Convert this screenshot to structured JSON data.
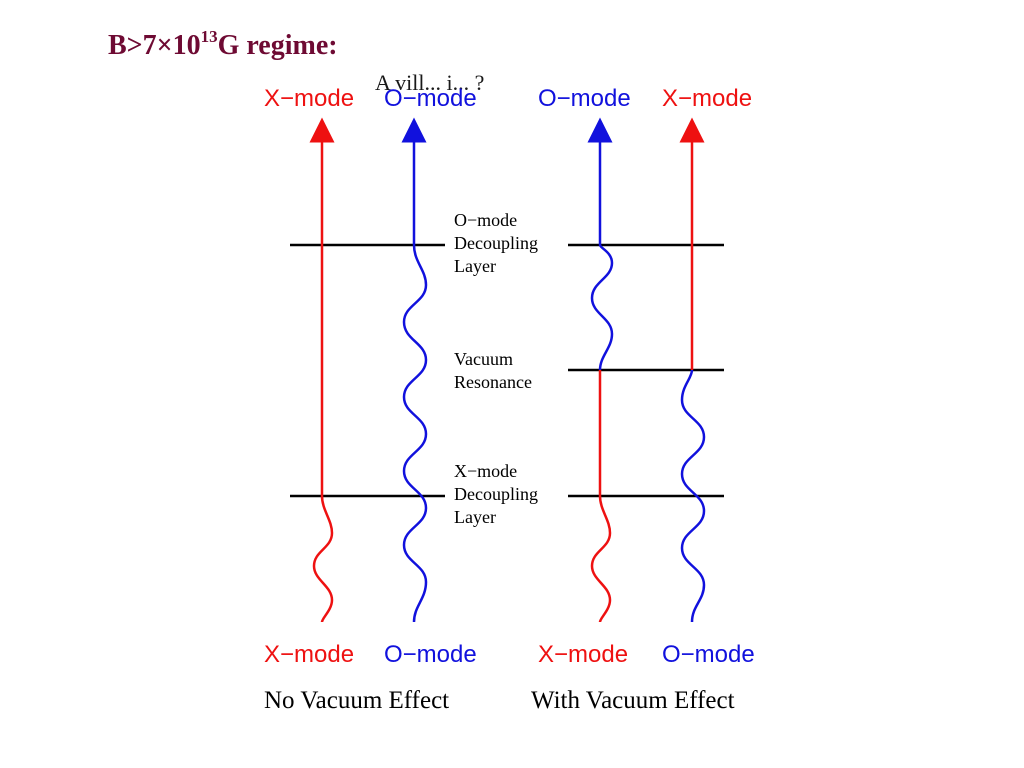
{
  "title": {
    "prefix": "B>7×10",
    "exponent": "13",
    "suffix": "G regime:"
  },
  "colors": {
    "x_mode": "#ee1111",
    "o_mode": "#1111dd",
    "title": "#6e0a33",
    "line": "#000000"
  },
  "panels": [
    {
      "top_labels": [
        "X−mode",
        "O−mode"
      ],
      "bottom_labels": [
        "X−mode",
        "O−mode"
      ],
      "caption": "No Vacuum Effect"
    },
    {
      "top_labels": [
        "O−mode",
        "X−mode"
      ],
      "bottom_labels": [
        "X−mode",
        "O−mode"
      ],
      "caption": "With Vacuum Effect"
    }
  ],
  "layers": [
    {
      "lines": [
        "O−mode",
        "Decoupling",
        "Layer"
      ]
    },
    {
      "lines": [
        "Vacuum",
        "Resonance"
      ]
    },
    {
      "lines": [
        "X−mode",
        "Decoupling",
        "Layer"
      ]
    }
  ],
  "overlap_text": "A vill... i... ?"
}
